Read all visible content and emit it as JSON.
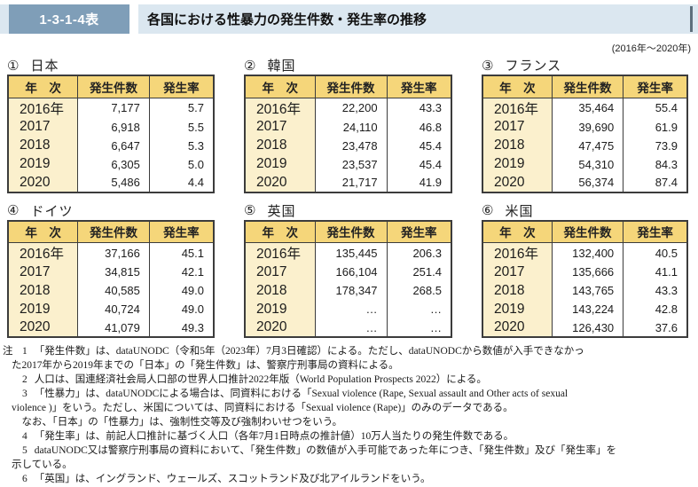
{
  "header": {
    "badge": "1-3-1-4表",
    "title": "各国における性暴力の発生件数・発生率の推移"
  },
  "period_label": "(2016年～2020年)",
  "columns": [
    "年　次",
    "発生件数",
    "発生率"
  ],
  "tables": [
    {
      "num": "①",
      "country": "日本",
      "rows": [
        [
          "2016年",
          "7,177",
          "5.7"
        ],
        [
          "2017",
          "6,918",
          "5.5"
        ],
        [
          "2018",
          "6,647",
          "5.3"
        ],
        [
          "2019",
          "6,305",
          "5.0"
        ],
        [
          "2020",
          "5,486",
          "4.4"
        ]
      ]
    },
    {
      "num": "②",
      "country": "韓国",
      "rows": [
        [
          "2016年",
          "22,200",
          "43.3"
        ],
        [
          "2017",
          "24,110",
          "46.8"
        ],
        [
          "2018",
          "23,478",
          "45.4"
        ],
        [
          "2019",
          "23,537",
          "45.4"
        ],
        [
          "2020",
          "21,717",
          "41.9"
        ]
      ]
    },
    {
      "num": "③",
      "country": "フランス",
      "rows": [
        [
          "2016年",
          "35,464",
          "55.4"
        ],
        [
          "2017",
          "39,690",
          "61.9"
        ],
        [
          "2018",
          "47,475",
          "73.9"
        ],
        [
          "2019",
          "54,310",
          "84.3"
        ],
        [
          "2020",
          "56,374",
          "87.4"
        ]
      ]
    },
    {
      "num": "④",
      "country": "ドイツ",
      "rows": [
        [
          "2016年",
          "37,166",
          "45.1"
        ],
        [
          "2017",
          "34,815",
          "42.1"
        ],
        [
          "2018",
          "40,585",
          "49.0"
        ],
        [
          "2019",
          "40,724",
          "49.0"
        ],
        [
          "2020",
          "41,079",
          "49.3"
        ]
      ]
    },
    {
      "num": "⑤",
      "country": "英国",
      "rows": [
        [
          "2016年",
          "135,445",
          "206.3"
        ],
        [
          "2017",
          "166,104",
          "251.4"
        ],
        [
          "2018",
          "178,347",
          "268.5"
        ],
        [
          "2019",
          "…",
          "…"
        ],
        [
          "2020",
          "…",
          "…"
        ]
      ]
    },
    {
      "num": "⑥",
      "country": "米国",
      "rows": [
        [
          "2016年",
          "132,400",
          "40.5"
        ],
        [
          "2017",
          "135,666",
          "41.1"
        ],
        [
          "2018",
          "143,765",
          "43.3"
        ],
        [
          "2019",
          "143,224",
          "42.8"
        ],
        [
          "2020",
          "126,430",
          "37.6"
        ]
      ]
    }
  ],
  "notes": {
    "label": "注",
    "items": [
      {
        "num": "1",
        "text": "「発生件数」は、dataUNODC（令和5年（2023年）7月3日確認）による。ただし、dataUNODCから数値が入手できなかっ\nた2017年から2019年までの「日本」の「発生件数」は、警察庁刑事局の資料による。"
      },
      {
        "num": "2",
        "text": "人口は、国連経済社会局人口部の世界人口推計2022年版（World Population Prospects 2022）による。"
      },
      {
        "num": "3",
        "text": "「性暴力」は、dataUNODCによる場合は、同資料における「Sexual violence (Rape, Sexual assault and Other acts of sexual\nviolence )」をいう。ただし、米国については、同資料における「Sexual violence (Rape)」のみのデータである。\n　なお、「日本」の「性暴力」は、強制性交等及び強制わいせつをいう。"
      },
      {
        "num": "4",
        "text": "「発生率」は、前記人口推計に基づく人口（各年7月1日時点の推計値）10万人当たりの発生件数である。"
      },
      {
        "num": "5",
        "text": "dataUNODC又は警察庁刑事局の資料において、「発生件数」の数値が入手可能であった年につき、「発生件数」及び「発生率」を\n示している。"
      },
      {
        "num": "6",
        "text": "「英国」は、イングランド、ウェールズ、スコットランド及び北アイルランドをいう。"
      }
    ]
  },
  "colors": {
    "band_blue": "#dbe7f0",
    "badge_blue": "#7f9eb8",
    "header_gold": "#f5d67a",
    "year_cream": "#fbf0cd",
    "border_dark": "#3c3c3c"
  }
}
